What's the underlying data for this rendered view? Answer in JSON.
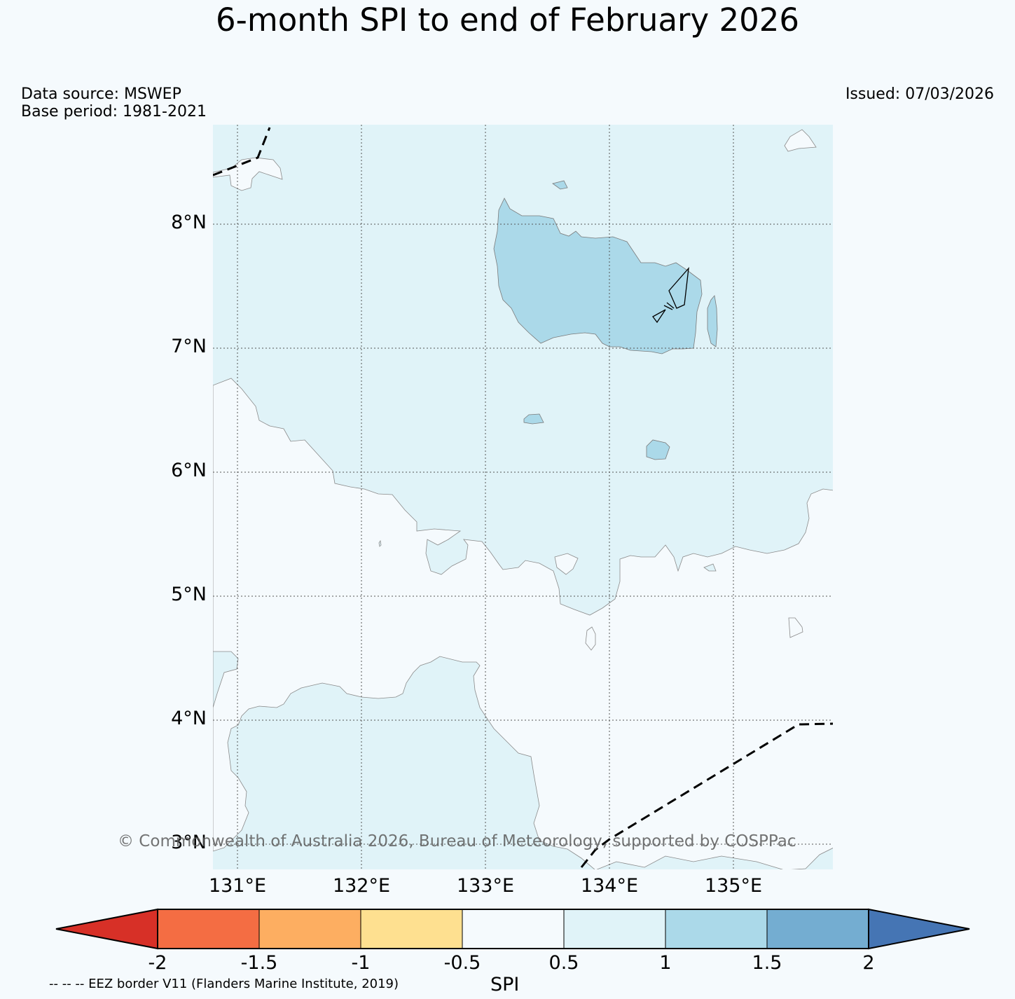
{
  "title": "6-month SPI to end of February 2026",
  "data_source": "Data source: MSWEP",
  "base_period": "Base period: 1981-2021",
  "issued": "Issued: 07/03/2026",
  "copyright": "© Commonwealth of Australia 2026, Bureau of Meteorology, supported by COSPPac",
  "eez_note": "-- -- -- EEZ border V11 (Flanders Marine Institute, 2019)",
  "latitude_labels": [
    "8°N",
    "7°N",
    "6°N",
    "5°N",
    "4°N",
    "3°N"
  ],
  "longitude_labels": [
    "131°E",
    "132°E",
    "133°E",
    "134°E",
    "135°E"
  ],
  "colorbar": {
    "label": "SPI",
    "ticks": [
      "-2",
      "-1.5",
      "-1",
      "-0.5",
      "0.5",
      "1",
      "1.5",
      "2"
    ],
    "bins": [
      {
        "range": "< -2",
        "color": "#d73027"
      },
      {
        "range": "-2 to -1.5",
        "color": "#f46d43"
      },
      {
        "range": "-1.5 to -1",
        "color": "#fdae61"
      },
      {
        "range": "-1 to -0.5",
        "color": "#fee090"
      },
      {
        "range": "-0.5 to 0.5",
        "color": "#f5fafd"
      },
      {
        "range": "0.5 to 1",
        "color": "#e0f3f8"
      },
      {
        "range": "1 to 1.5",
        "color": "#abd9e9"
      },
      {
        "range": "1.5 to 2",
        "color": "#74add1"
      },
      {
        "range": "> 2",
        "color": "#4575b4"
      }
    ]
  },
  "map_extent": {
    "lon": [
      130.8,
      135.8
    ],
    "lat": [
      2.8,
      8.8
    ]
  }
}
